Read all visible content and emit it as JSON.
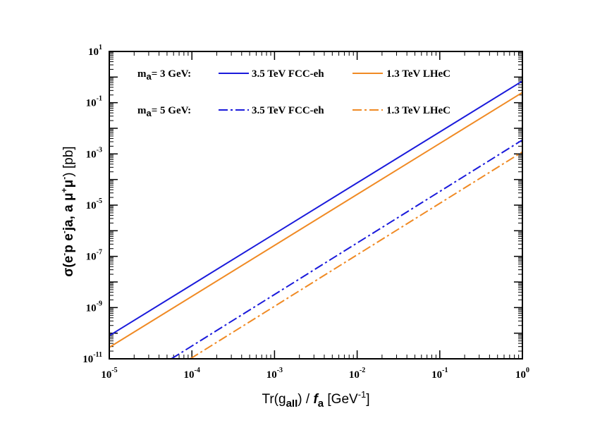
{
  "chart_data": {
    "type": "line",
    "xscale": "log",
    "yscale": "log",
    "xlim": [
      1e-05,
      1
    ],
    "ylim": [
      1e-11,
      10
    ],
    "xticks": [
      {
        "base": "10",
        "exp": "-5",
        "value": 1e-05
      },
      {
        "base": "10",
        "exp": "-4",
        "value": 0.0001
      },
      {
        "base": "10",
        "exp": "-3",
        "value": 0.001
      },
      {
        "base": "10",
        "exp": "-2",
        "value": 0.01
      },
      {
        "base": "10",
        "exp": "-1",
        "value": 0.1
      },
      {
        "base": "10",
        "exp": "0",
        "value": 1
      }
    ],
    "yticks": [
      {
        "base": "10",
        "exp": "-11",
        "value": 1e-11
      },
      {
        "base": "10",
        "exp": "-9",
        "value": 1e-09
      },
      {
        "base": "10",
        "exp": "-7",
        "value": 1e-07
      },
      {
        "base": "10",
        "exp": "-5",
        "value": 1e-05
      },
      {
        "base": "10",
        "exp": "-3",
        "value": 0.001
      },
      {
        "base": "10",
        "exp": "-1",
        "value": 0.1
      },
      {
        "base": "10",
        "exp": "1",
        "value": 10
      }
    ],
    "xlabel": {
      "prefix": "Tr(g",
      "sub": "aII",
      "mid": ") / ",
      "f": "f",
      "fsub": "a",
      "suffix": " [GeV",
      "sup": "-1",
      "end": "]"
    },
    "ylabel": {
      "p1": "σ(e",
      "s1": "-",
      "p2": "p    e",
      "s2": "-",
      "p3": "ja, a    μ",
      "s3": "+",
      "p4": "μ",
      "s4": "-",
      "p5": ")  [pb]"
    },
    "legend_groups": [
      {
        "label_main": "m",
        "label_sub": "a",
        "label_rest": "= 3 GeV:"
      },
      {
        "label_main": "m",
        "label_sub": "a",
        "label_rest": "= 5 GeV:"
      }
    ],
    "series": [
      {
        "name": "3.5 TeV FCC-eh",
        "group": 0,
        "color": "#1a1adb",
        "dash": "solid",
        "x": [
          1e-05,
          1
        ],
        "y": [
          8e-11,
          0.7
        ]
      },
      {
        "name": "1.3 TeV LHeC",
        "group": 0,
        "color": "#f08a24",
        "dash": "solid",
        "x": [
          1e-05,
          1
        ],
        "y": [
          2.8e-11,
          0.25
        ]
      },
      {
        "name": "3.5 TeV FCC-eh",
        "group": 1,
        "color": "#1a1adb",
        "dash": "dashdot",
        "x": [
          5.64e-05,
          1
        ],
        "y": [
          1e-11,
          0.0035
        ]
      },
      {
        "name": "1.3 TeV LHeC",
        "group": 1,
        "color": "#f08a24",
        "dash": "dashdot",
        "x": [
          9.55e-05,
          1
        ],
        "y": [
          1e-11,
          0.0012
        ]
      }
    ]
  }
}
